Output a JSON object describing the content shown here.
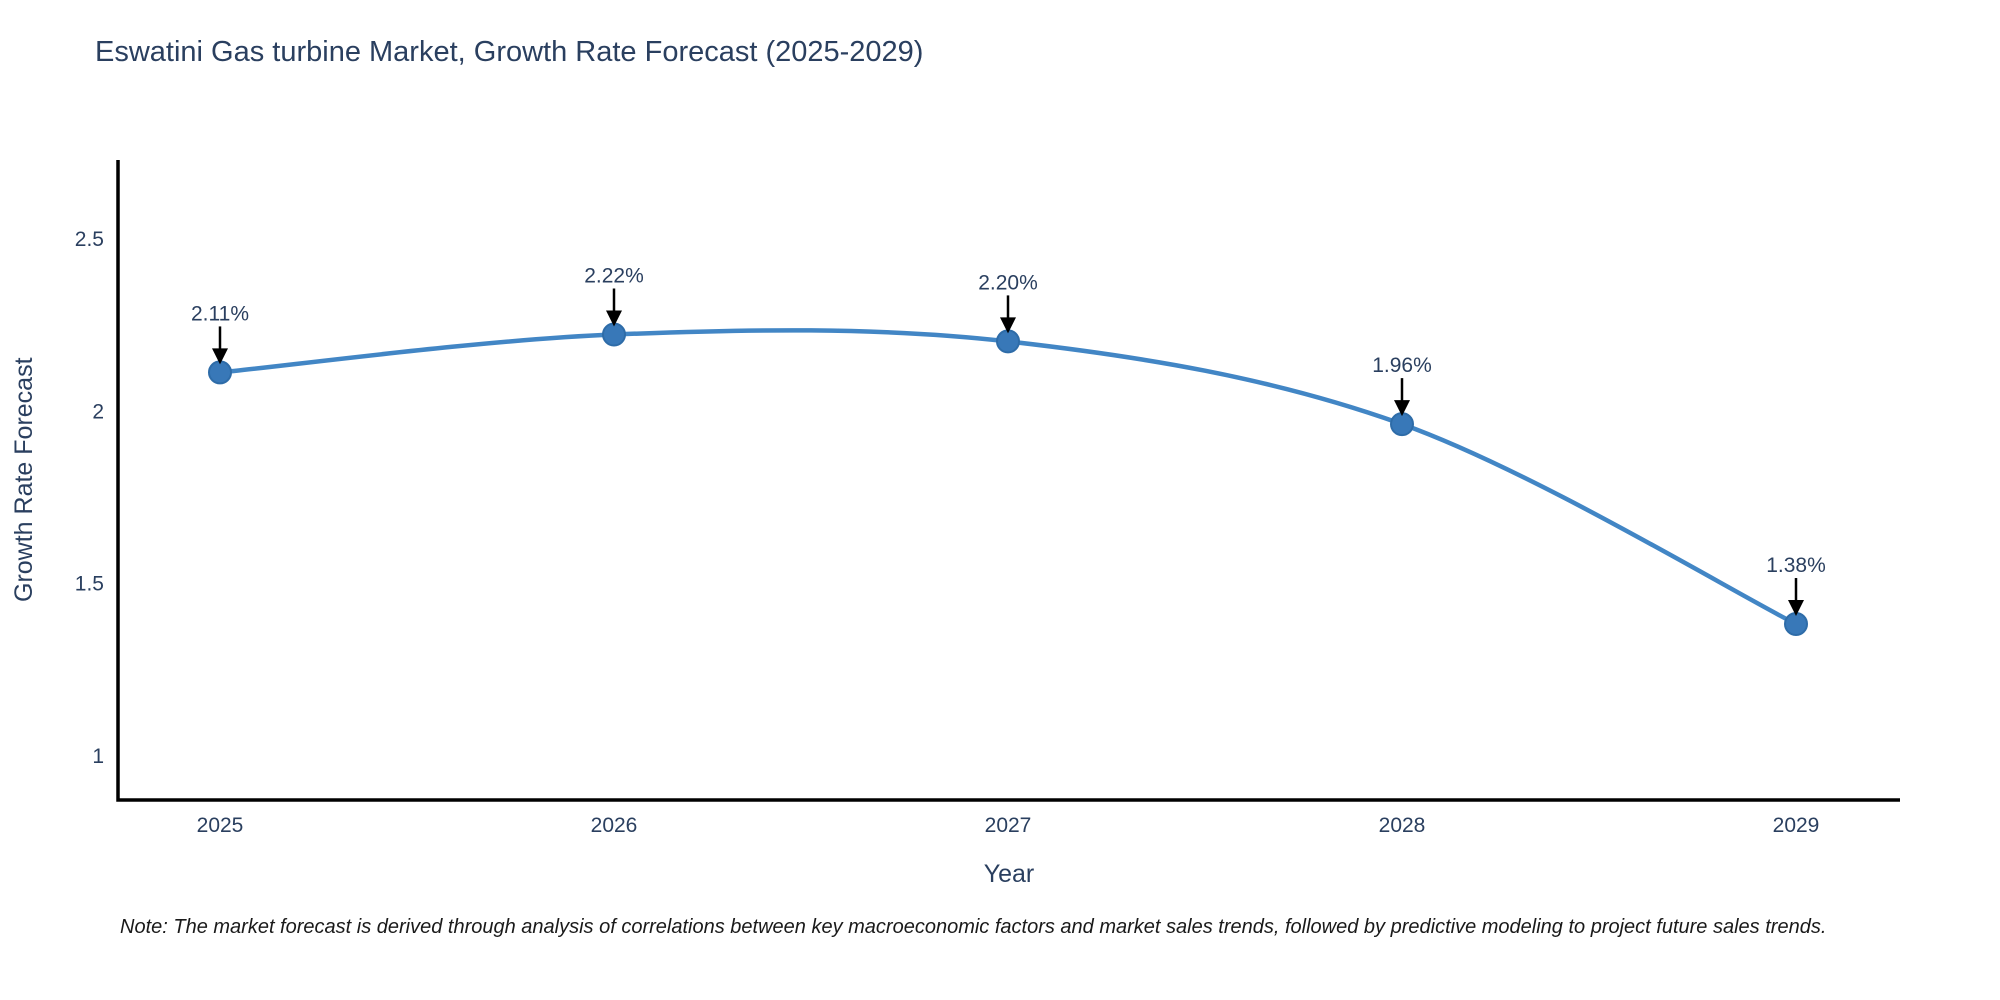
{
  "chart_data": {
    "type": "line",
    "title": "Eswatini Gas turbine Market, Growth Rate Forecast (2025-2029)",
    "xlabel": "Year",
    "ylabel": "Growth Rate Forecast",
    "categories": [
      "2025",
      "2026",
      "2027",
      "2028",
      "2029"
    ],
    "series": [
      {
        "name": "Growth Rate Forecast",
        "values": [
          2.11,
          2.22,
          2.2,
          1.96,
          1.38
        ],
        "point_labels": [
          "2.11%",
          "2.22%",
          "2.20%",
          "1.96%",
          "1.38%"
        ]
      }
    ],
    "y_ticks": [
      1,
      1.5,
      2,
      2.5
    ],
    "y_tick_labels": [
      "1",
      "1.5",
      "2",
      "2.5"
    ],
    "ylim": [
      0.87,
      2.82
    ],
    "grid": false,
    "legend_position": "none",
    "line_style": "spline",
    "annotation_style": "value-above-with-down-arrow",
    "colors": {
      "line": "#4286c5",
      "marker_fill": "#3878b8",
      "marker_edge": "#2e6ca8",
      "axis_line": "#000000",
      "tick_text": "#2a3f5f",
      "title_text": "#2a3f5f",
      "annotation_text": "#2a3f5f",
      "annotation_arrow": "#000000"
    }
  },
  "footnote": "Note: The market forecast is derived through analysis of correlations between key macroeconomic factors and market sales trends, followed by predictive modeling to project future sales trends."
}
